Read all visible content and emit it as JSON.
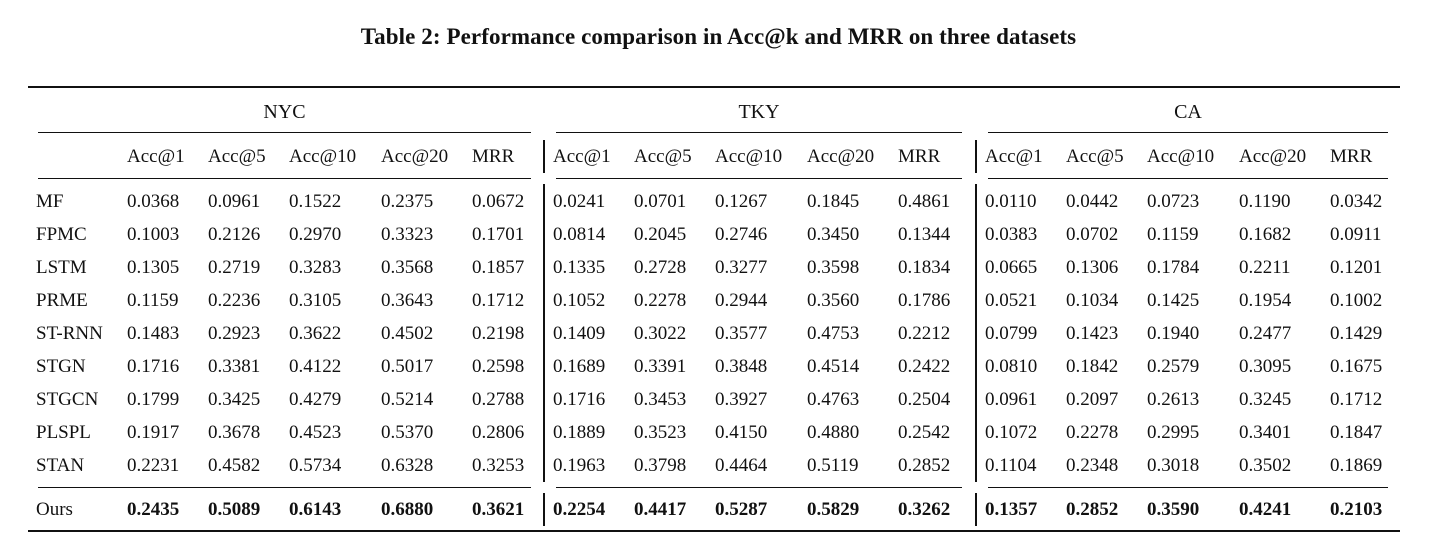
{
  "caption": "Table 2: Performance comparison in Acc@k and MRR on three datasets",
  "groups": [
    "NYC",
    "TKY",
    "CA"
  ],
  "metrics": [
    "Acc@1",
    "Acc@5",
    "Acc@10",
    "Acc@20",
    "MRR"
  ],
  "rows": [
    {
      "method": "MF",
      "values": [
        "0.0368",
        "0.0961",
        "0.1522",
        "0.2375",
        "0.0672",
        "0.0241",
        "0.0701",
        "0.1267",
        "0.1845",
        "0.4861",
        "0.0110",
        "0.0442",
        "0.0723",
        "0.1190",
        "0.0342"
      ]
    },
    {
      "method": "FPMC",
      "values": [
        "0.1003",
        "0.2126",
        "0.2970",
        "0.3323",
        "0.1701",
        "0.0814",
        "0.2045",
        "0.2746",
        "0.3450",
        "0.1344",
        "0.0383",
        "0.0702",
        "0.1159",
        "0.1682",
        "0.0911"
      ]
    },
    {
      "method": "LSTM",
      "values": [
        "0.1305",
        "0.2719",
        "0.3283",
        "0.3568",
        "0.1857",
        "0.1335",
        "0.2728",
        "0.3277",
        "0.3598",
        "0.1834",
        "0.0665",
        "0.1306",
        "0.1784",
        "0.2211",
        "0.1201"
      ]
    },
    {
      "method": "PRME",
      "values": [
        "0.1159",
        "0.2236",
        "0.3105",
        "0.3643",
        "0.1712",
        "0.1052",
        "0.2278",
        "0.2944",
        "0.3560",
        "0.1786",
        "0.0521",
        "0.1034",
        "0.1425",
        "0.1954",
        "0.1002"
      ]
    },
    {
      "method": "ST-RNN",
      "values": [
        "0.1483",
        "0.2923",
        "0.3622",
        "0.4502",
        "0.2198",
        "0.1409",
        "0.3022",
        "0.3577",
        "0.4753",
        "0.2212",
        "0.0799",
        "0.1423",
        "0.1940",
        "0.2477",
        "0.1429"
      ]
    },
    {
      "method": "STGN",
      "values": [
        "0.1716",
        "0.3381",
        "0.4122",
        "0.5017",
        "0.2598",
        "0.1689",
        "0.3391",
        "0.3848",
        "0.4514",
        "0.2422",
        "0.0810",
        "0.1842",
        "0.2579",
        "0.3095",
        "0.1675"
      ]
    },
    {
      "method": "STGCN",
      "values": [
        "0.1799",
        "0.3425",
        "0.4279",
        "0.5214",
        "0.2788",
        "0.1716",
        "0.3453",
        "0.3927",
        "0.4763",
        "0.2504",
        "0.0961",
        "0.2097",
        "0.2613",
        "0.3245",
        "0.1712"
      ]
    },
    {
      "method": "PLSPL",
      "values": [
        "0.1917",
        "0.3678",
        "0.4523",
        "0.5370",
        "0.2806",
        "0.1889",
        "0.3523",
        "0.4150",
        "0.4880",
        "0.2542",
        "0.1072",
        "0.2278",
        "0.2995",
        "0.3401",
        "0.1847"
      ]
    },
    {
      "method": "STAN",
      "values": [
        "0.2231",
        "0.4582",
        "0.5734",
        "0.6328",
        "0.3253",
        "0.1963",
        "0.3798",
        "0.4464",
        "0.5119",
        "0.2852",
        "0.1104",
        "0.2348",
        "0.3018",
        "0.3502",
        "0.1869"
      ]
    }
  ],
  "ours": {
    "method": "Ours",
    "values": [
      "0.2435",
      "0.5089",
      "0.6143",
      "0.6880",
      "0.3621",
      "0.2254",
      "0.4417",
      "0.5287",
      "0.5829",
      "0.3262",
      "0.1357",
      "0.2852",
      "0.3590",
      "0.4241",
      "0.2103"
    ]
  }
}
